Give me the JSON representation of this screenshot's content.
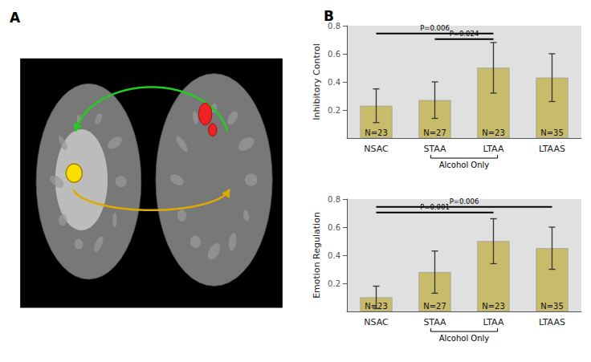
{
  "chart_data": [
    {
      "type": "illustration",
      "title": "A"
    },
    {
      "type": "bar",
      "title": "B",
      "categories": [
        "NSAC",
        "STAA",
        "LTAA",
        "LTAAS"
      ],
      "values": [
        0.23,
        0.27,
        0.5,
        0.43
      ],
      "errors": [
        0.12,
        0.13,
        0.18,
        0.17
      ],
      "color": "#c8bc6a",
      "ylabel": "Inhibitory Control",
      "ylim": [
        0.0,
        0.8
      ],
      "yticks": [
        0.2,
        0.4,
        0.6,
        0.8
      ],
      "grid": false,
      "bar_annotations": [
        "N=23",
        "N=27",
        "N=23",
        "N=35"
      ],
      "annotations": [
        {
          "text": "P=0.006",
          "from": "NSAC",
          "to": "LTAA",
          "y": 0.745
        },
        {
          "text": "P=0.024",
          "from": "STAA",
          "to": "LTAA",
          "y": 0.705
        }
      ],
      "group_label": {
        "text": "Alcohol Only",
        "from": "STAA",
        "to": "LTAA"
      }
    },
    {
      "type": "bar",
      "categories": [
        "NSAC",
        "STAA",
        "LTAA",
        "LTAAS"
      ],
      "values": [
        0.1,
        0.28,
        0.5,
        0.45
      ],
      "errors": [
        0.08,
        0.15,
        0.16,
        0.15
      ],
      "color": "#c8bc6a",
      "ylabel": "Emotion Regulation",
      "ylim": [
        0.0,
        0.8
      ],
      "yticks": [
        0.2,
        0.4,
        0.6,
        0.8
      ],
      "grid": false,
      "bar_annotations": [
        "N=23",
        "N=27",
        "N=23",
        "N=35"
      ],
      "annotations": [
        {
          "text": "P=0.006",
          "from": "NSAC",
          "to": "LTAAS",
          "y": 0.745
        },
        {
          "text": "P=0.001",
          "from": "NSAC",
          "to": "LTAA",
          "y": 0.705
        }
      ],
      "group_label": {
        "text": "Alcohol Only",
        "from": "STAA",
        "to": "LTAA"
      }
    }
  ]
}
